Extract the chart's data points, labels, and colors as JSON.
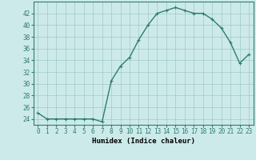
{
  "x": [
    0,
    1,
    2,
    3,
    4,
    5,
    6,
    7,
    8,
    9,
    10,
    11,
    12,
    13,
    14,
    15,
    16,
    17,
    18,
    19,
    20,
    21,
    22,
    23
  ],
  "y": [
    25,
    24,
    24,
    24,
    24,
    24,
    24,
    23.5,
    30.5,
    33,
    34.5,
    37.5,
    40,
    42,
    42.5,
    43,
    42.5,
    42,
    42,
    41,
    39.5,
    37,
    33.5,
    35
  ],
  "line_color": "#2d7d6e",
  "marker": "+",
  "marker_color": "#2d7d6e",
  "bg_color": "#cdeaea",
  "grid_color": "#a0c8c8",
  "xlabel": "Humidex (Indice chaleur)",
  "xlim": [
    -0.5,
    23.5
  ],
  "ylim": [
    23,
    44
  ],
  "yticks": [
    24,
    26,
    28,
    30,
    32,
    34,
    36,
    38,
    40,
    42
  ],
  "xticks": [
    0,
    1,
    2,
    3,
    4,
    5,
    6,
    7,
    8,
    9,
    10,
    11,
    12,
    13,
    14,
    15,
    16,
    17,
    18,
    19,
    20,
    21,
    22,
    23
  ],
  "xlabel_fontsize": 6.5,
  "tick_fontsize": 5.5,
  "line_width": 1.0,
  "marker_size": 3.5
}
